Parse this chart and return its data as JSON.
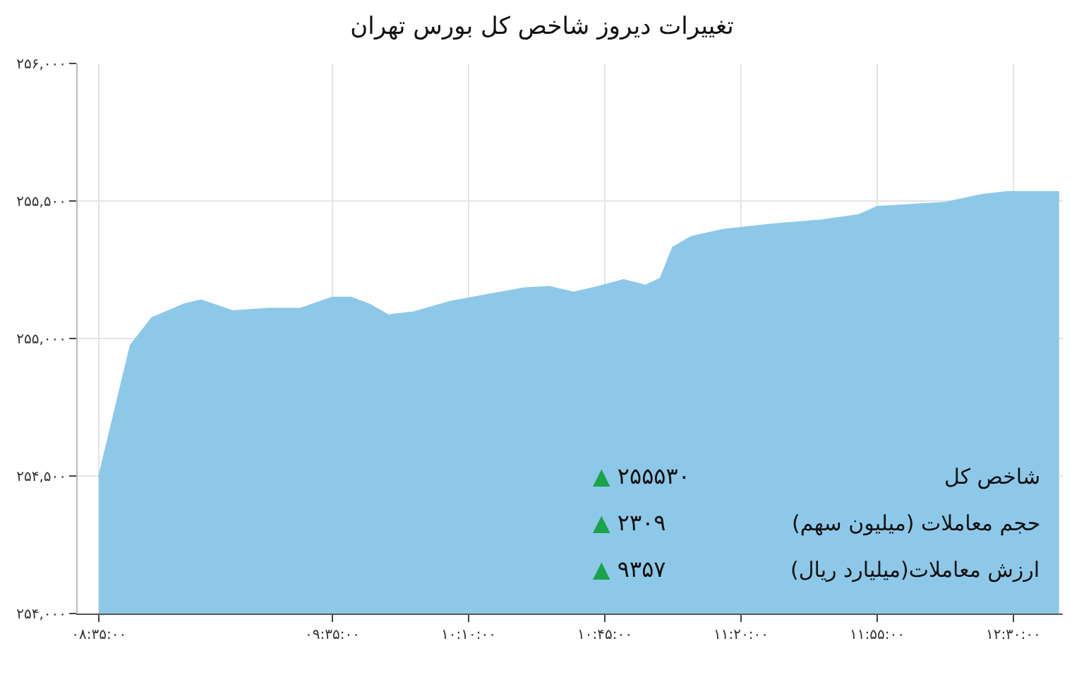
{
  "chart_data": {
    "type": "area",
    "title": "تغییرات دیروز شاخص کل بورس تهران",
    "x": [
      8.583,
      8.72,
      8.811,
      8.947,
      9.02,
      9.156,
      9.311,
      9.447,
      9.583,
      9.663,
      9.742,
      9.822,
      9.928,
      10.087,
      10.246,
      10.405,
      10.511,
      10.617,
      10.723,
      10.83,
      10.925,
      10.989,
      11.042,
      11.121,
      11.254,
      11.466,
      11.678,
      11.837,
      11.917,
      12.023,
      12.208,
      12.367,
      12.473,
      12.696
    ],
    "series": [
      {
        "color": "#8ec8e8",
        "values": [
          254492,
          254975,
          255074,
          255123,
          255138,
          255099,
          255108,
          255108,
          255148,
          255148,
          255123,
          255084,
          255094,
          255133,
          255158,
          255182,
          255187,
          255167,
          255187,
          255212,
          255192,
          255217,
          255330,
          255369,
          255394,
          255414,
          255429,
          255448,
          255478,
          255483,
          255493,
          255522,
          255532,
          255532
        ]
      }
    ],
    "xlim": [
      8.492,
      12.712
    ],
    "xticks": [
      {
        "value": 8.5833,
        "label": "۰۸:۳۵:۰۰"
      },
      {
        "value": 9.5833,
        "label": "۰۹:۳۵:۰۰"
      },
      {
        "value": 10.1667,
        "label": "۱۰:۱۰:۰۰"
      },
      {
        "value": 10.75,
        "label": "۱۰:۴۵:۰۰"
      },
      {
        "value": 11.3333,
        "label": "۱۱:۲۰:۰۰"
      },
      {
        "value": 11.9167,
        "label": "۱۱:۵۵:۰۰"
      },
      {
        "value": 12.5,
        "label": "۱۲:۳۰:۰۰"
      }
    ],
    "ylim": [
      254000,
      256000
    ],
    "yticks": [
      {
        "value": 254000,
        "label": "۲۵۴,۰۰۰"
      },
      {
        "value": 254500,
        "label": "۲۵۴,۵۰۰"
      },
      {
        "value": 255000,
        "label": "۲۵۵,۰۰۰"
      },
      {
        "value": 255500,
        "label": "۲۵۵,۵۰۰"
      },
      {
        "value": 256000,
        "label": "۲۵۶,۰۰۰"
      }
    ],
    "grid": true,
    "annotations": [
      "شاخص کل",
      "▲ ۲۵۵۵۳۰",
      "حجم معاملات (میلیون سهم)",
      "▲ ۲۳۰۹",
      "ارزش معاملات(میلیارد ریال)",
      "▲ ۹۳۵۷"
    ]
  }
}
